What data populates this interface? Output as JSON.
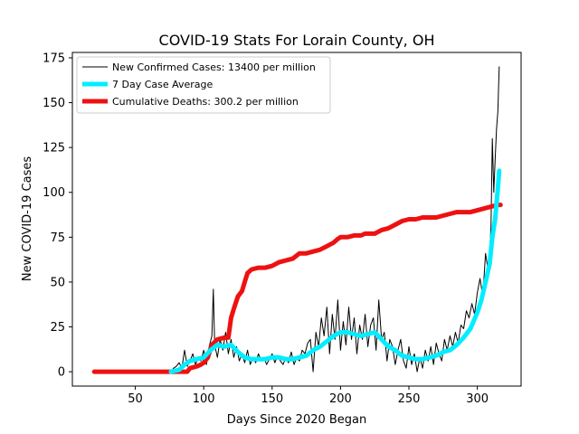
{
  "chart_data": {
    "type": "line",
    "title": "COVID-19 Stats For Lorain County, OH",
    "xlabel": "Days Since 2020 Began",
    "ylabel": "New COVID-19 Cases",
    "xlim": [
      4,
      332
    ],
    "ylim": [
      -8,
      178
    ],
    "xticks": [
      50,
      100,
      150,
      200,
      250,
      300
    ],
    "yticks": [
      0,
      25,
      50,
      75,
      100,
      125,
      150,
      175
    ],
    "grid": false,
    "legend_position": "top-left",
    "series": [
      {
        "name": "New Confirmed Cases: 13400 per million",
        "color": "#000000",
        "style": "thin",
        "points": [
          [
            76,
            0
          ],
          [
            78,
            2
          ],
          [
            80,
            3
          ],
          [
            82,
            5
          ],
          [
            84,
            2
          ],
          [
            86,
            12
          ],
          [
            88,
            3
          ],
          [
            90,
            6
          ],
          [
            92,
            10
          ],
          [
            94,
            4
          ],
          [
            96,
            8
          ],
          [
            98,
            6
          ],
          [
            100,
            12
          ],
          [
            102,
            4
          ],
          [
            104,
            14
          ],
          [
            106,
            20
          ],
          [
            107,
            46
          ],
          [
            108,
            15
          ],
          [
            110,
            8
          ],
          [
            112,
            18
          ],
          [
            114,
            12
          ],
          [
            116,
            22
          ],
          [
            118,
            10
          ],
          [
            120,
            18
          ],
          [
            122,
            8
          ],
          [
            124,
            14
          ],
          [
            126,
            6
          ],
          [
            128,
            10
          ],
          [
            130,
            5
          ],
          [
            132,
            12
          ],
          [
            134,
            4
          ],
          [
            136,
            8
          ],
          [
            138,
            5
          ],
          [
            140,
            10
          ],
          [
            142,
            6
          ],
          [
            144,
            8
          ],
          [
            146,
            4
          ],
          [
            148,
            7
          ],
          [
            150,
            10
          ],
          [
            152,
            5
          ],
          [
            154,
            9
          ],
          [
            156,
            6
          ],
          [
            158,
            4
          ],
          [
            160,
            8
          ],
          [
            162,
            5
          ],
          [
            164,
            11
          ],
          [
            166,
            4
          ],
          [
            168,
            8
          ],
          [
            170,
            6
          ],
          [
            172,
            12
          ],
          [
            174,
            10
          ],
          [
            176,
            16
          ],
          [
            178,
            18
          ],
          [
            180,
            0
          ],
          [
            182,
            22
          ],
          [
            184,
            14
          ],
          [
            186,
            30
          ],
          [
            188,
            20
          ],
          [
            190,
            36
          ],
          [
            192,
            10
          ],
          [
            194,
            32
          ],
          [
            196,
            18
          ],
          [
            198,
            40
          ],
          [
            200,
            12
          ],
          [
            202,
            28
          ],
          [
            204,
            15
          ],
          [
            206,
            36
          ],
          [
            208,
            18
          ],
          [
            210,
            30
          ],
          [
            212,
            10
          ],
          [
            214,
            26
          ],
          [
            216,
            18
          ],
          [
            218,
            32
          ],
          [
            220,
            14
          ],
          [
            222,
            26
          ],
          [
            224,
            30
          ],
          [
            226,
            12
          ],
          [
            228,
            40
          ],
          [
            230,
            18
          ],
          [
            232,
            22
          ],
          [
            234,
            6
          ],
          [
            236,
            18
          ],
          [
            238,
            14
          ],
          [
            240,
            4
          ],
          [
            242,
            12
          ],
          [
            244,
            18
          ],
          [
            246,
            6
          ],
          [
            248,
            2
          ],
          [
            250,
            14
          ],
          [
            252,
            4
          ],
          [
            254,
            10
          ],
          [
            256,
            0
          ],
          [
            258,
            8
          ],
          [
            260,
            2
          ],
          [
            262,
            12
          ],
          [
            264,
            6
          ],
          [
            266,
            14
          ],
          [
            268,
            4
          ],
          [
            270,
            16
          ],
          [
            272,
            10
          ],
          [
            274,
            6
          ],
          [
            276,
            18
          ],
          [
            278,
            12
          ],
          [
            280,
            20
          ],
          [
            282,
            14
          ],
          [
            284,
            22
          ],
          [
            286,
            16
          ],
          [
            288,
            26
          ],
          [
            290,
            24
          ],
          [
            292,
            34
          ],
          [
            294,
            30
          ],
          [
            296,
            38
          ],
          [
            298,
            32
          ],
          [
            300,
            44
          ],
          [
            302,
            52
          ],
          [
            304,
            42
          ],
          [
            306,
            66
          ],
          [
            308,
            56
          ],
          [
            310,
            80
          ],
          [
            311,
            130
          ],
          [
            312,
            100
          ],
          [
            313,
            118
          ],
          [
            314,
            135
          ],
          [
            315,
            145
          ],
          [
            316,
            170
          ]
        ]
      },
      {
        "name": "7 Day Case Average",
        "color": "#00eeff",
        "style": "thick",
        "points": [
          [
            76,
            0
          ],
          [
            82,
            1
          ],
          [
            86,
            4
          ],
          [
            90,
            6
          ],
          [
            95,
            7
          ],
          [
            100,
            8
          ],
          [
            105,
            12
          ],
          [
            110,
            15
          ],
          [
            115,
            14
          ],
          [
            120,
            15
          ],
          [
            125,
            11
          ],
          [
            130,
            8
          ],
          [
            135,
            7
          ],
          [
            140,
            7
          ],
          [
            145,
            7
          ],
          [
            150,
            8
          ],
          [
            155,
            8
          ],
          [
            160,
            7
          ],
          [
            165,
            7
          ],
          [
            170,
            8
          ],
          [
            175,
            9
          ],
          [
            180,
            12
          ],
          [
            185,
            14
          ],
          [
            190,
            17
          ],
          [
            195,
            20
          ],
          [
            200,
            22
          ],
          [
            205,
            22
          ],
          [
            210,
            21
          ],
          [
            215,
            20
          ],
          [
            220,
            21
          ],
          [
            225,
            22
          ],
          [
            230,
            18
          ],
          [
            235,
            14
          ],
          [
            240,
            12
          ],
          [
            245,
            9
          ],
          [
            250,
            8
          ],
          [
            255,
            7
          ],
          [
            260,
            7
          ],
          [
            265,
            8
          ],
          [
            270,
            9
          ],
          [
            275,
            11
          ],
          [
            280,
            12
          ],
          [
            285,
            15
          ],
          [
            290,
            19
          ],
          [
            295,
            24
          ],
          [
            300,
            33
          ],
          [
            303,
            40
          ],
          [
            306,
            50
          ],
          [
            309,
            60
          ],
          [
            311,
            75
          ],
          [
            313,
            85
          ],
          [
            315,
            102
          ],
          [
            316,
            112
          ]
        ]
      },
      {
        "name": "Cumulative Deaths: 300.2 per million",
        "color": "#ee1111",
        "style": "thick",
        "points": [
          [
            20,
            0
          ],
          [
            40,
            0
          ],
          [
            60,
            0
          ],
          [
            80,
            0
          ],
          [
            88,
            0
          ],
          [
            90,
            2
          ],
          [
            95,
            3
          ],
          [
            98,
            4
          ],
          [
            100,
            5
          ],
          [
            103,
            8
          ],
          [
            106,
            15
          ],
          [
            110,
            18
          ],
          [
            115,
            19
          ],
          [
            118,
            19
          ],
          [
            120,
            30
          ],
          [
            122,
            35
          ],
          [
            125,
            42
          ],
          [
            128,
            45
          ],
          [
            130,
            50
          ],
          [
            132,
            55
          ],
          [
            135,
            57
          ],
          [
            140,
            58
          ],
          [
            145,
            58
          ],
          [
            150,
            59
          ],
          [
            155,
            61
          ],
          [
            160,
            62
          ],
          [
            165,
            63
          ],
          [
            170,
            66
          ],
          [
            175,
            66
          ],
          [
            180,
            67
          ],
          [
            185,
            68
          ],
          [
            190,
            70
          ],
          [
            195,
            72
          ],
          [
            198,
            74
          ],
          [
            200,
            75
          ],
          [
            205,
            75
          ],
          [
            210,
            76
          ],
          [
            215,
            76
          ],
          [
            218,
            77
          ],
          [
            225,
            77
          ],
          [
            230,
            79
          ],
          [
            235,
            80
          ],
          [
            240,
            82
          ],
          [
            245,
            84
          ],
          [
            250,
            85
          ],
          [
            255,
            85
          ],
          [
            260,
            86
          ],
          [
            265,
            86
          ],
          [
            270,
            86
          ],
          [
            275,
            87
          ],
          [
            280,
            88
          ],
          [
            285,
            89
          ],
          [
            290,
            89
          ],
          [
            295,
            89
          ],
          [
            300,
            90
          ],
          [
            305,
            91
          ],
          [
            310,
            92
          ],
          [
            315,
            93
          ],
          [
            317,
            93
          ]
        ]
      }
    ]
  }
}
